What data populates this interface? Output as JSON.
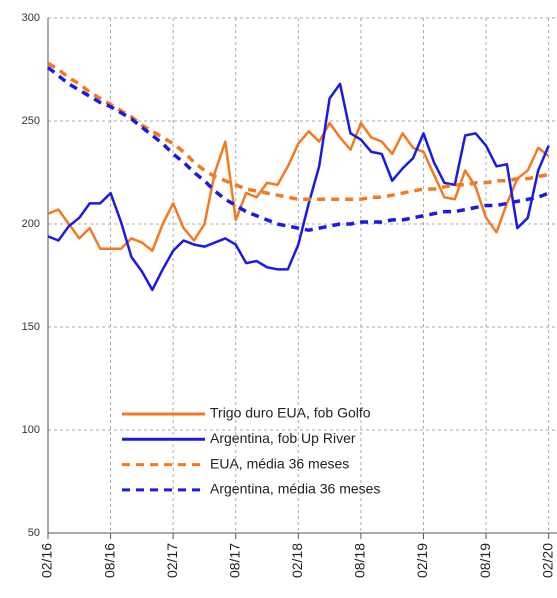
{
  "chart_data": {
    "type": "line",
    "categories": [
      "02/16",
      null,
      null,
      null,
      null,
      null,
      "08/16",
      null,
      null,
      null,
      null,
      null,
      "02/17",
      null,
      null,
      null,
      null,
      null,
      "08/17",
      null,
      null,
      null,
      null,
      null,
      "02/18",
      null,
      null,
      null,
      null,
      null,
      "08/18",
      null,
      null,
      null,
      null,
      null,
      "02/19",
      null,
      null,
      null,
      null,
      null,
      "08/19",
      null,
      null,
      null,
      null,
      null,
      "02/20"
    ],
    "ylim": [
      50,
      300
    ],
    "yticks": [
      50,
      100,
      150,
      200,
      250,
      300
    ],
    "grid": true,
    "legend": "bottom",
    "series": [
      {
        "name": "Trigo duro EUA, fob Golfo",
        "color": "#f47a20",
        "dashed": false,
        "values": [
          205,
          207,
          200,
          193,
          198,
          188,
          188,
          188,
          193,
          191,
          187,
          200,
          210,
          198,
          192,
          200,
          225,
          240,
          202,
          215,
          213,
          220,
          219,
          228,
          239,
          245,
          240,
          249,
          242,
          236,
          249,
          242,
          240,
          234,
          244,
          237,
          235,
          224,
          213,
          212,
          226,
          218,
          203,
          196,
          210,
          222,
          226,
          237,
          233
        ]
      },
      {
        "name": "Argentina, fob Up River",
        "color": "#1a1ae6",
        "dashed": false,
        "values": [
          194,
          192,
          199,
          203,
          210,
          210,
          215,
          201,
          184,
          177,
          168,
          178,
          187,
          192,
          190,
          189,
          191,
          193,
          190,
          181,
          182,
          179,
          178,
          178,
          190,
          210,
          228,
          261,
          268,
          244,
          241,
          235,
          234,
          221,
          227,
          232,
          244,
          230,
          220,
          219,
          243,
          244,
          238,
          228,
          229,
          198,
          203,
          226,
          238
        ]
      },
      {
        "name": "EUA, média 36 meses",
        "color": "#f47a20",
        "dashed": true,
        "values": [
          278,
          275,
          271,
          268,
          264,
          261,
          258,
          255,
          252,
          248,
          245,
          242,
          239,
          235,
          230,
          226,
          223,
          221,
          219,
          217,
          216,
          215,
          214,
          213,
          212,
          212,
          212,
          212,
          212,
          212,
          212,
          213,
          213,
          214,
          215,
          216,
          217,
          217,
          218,
          219,
          219,
          220,
          220,
          221,
          221,
          222,
          222,
          223,
          224
        ]
      },
      {
        "name": "Argentina, média 36 meses",
        "color": "#1a1ae6",
        "dashed": true,
        "values": [
          276,
          272,
          268,
          265,
          262,
          259,
          257,
          254,
          251,
          247,
          243,
          239,
          234,
          230,
          225,
          221,
          216,
          212,
          209,
          206,
          204,
          202,
          200,
          199,
          198,
          197,
          198,
          199,
          200,
          200,
          201,
          201,
          201,
          202,
          202,
          203,
          204,
          205,
          206,
          206,
          207,
          208,
          209,
          209,
          210,
          211,
          212,
          213,
          215
        ]
      }
    ]
  }
}
